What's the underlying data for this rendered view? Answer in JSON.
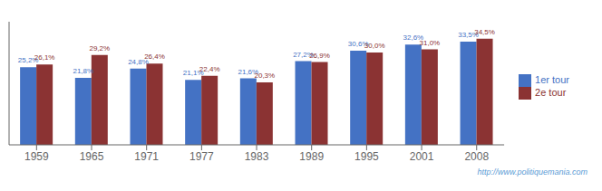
{
  "chart_data": {
    "type": "bar",
    "categories": [
      "1959",
      "1965",
      "1971",
      "1977",
      "1983",
      "1989",
      "1995",
      "2001",
      "2008"
    ],
    "series": [
      {
        "name": "1er tour",
        "color": "#4472C4",
        "values": [
          25.2,
          21.8,
          24.8,
          21.1,
          21.6,
          27.2,
          30.6,
          32.6,
          33.5
        ],
        "value_labels": [
          "25,2%",
          "21,8%",
          "24,8%",
          "21,1%",
          "21,6%",
          "27,2%",
          "30,6%",
          "32,6%",
          "33,5%"
        ]
      },
      {
        "name": "2e tour",
        "color": "#8B3333",
        "values": [
          26.1,
          29.2,
          26.4,
          22.4,
          20.3,
          26.9,
          30.0,
          31.0,
          34.5
        ],
        "value_labels": [
          "26,1%",
          "29,2%",
          "26,4%",
          "22,4%",
          "20,3%",
          "26,9%",
          "30,0%",
          "31,0%",
          "34,5%"
        ]
      }
    ],
    "ylim": [
      0,
      40
    ],
    "data_labels": true,
    "tick_labels": "x",
    "grid": false,
    "legend": "right",
    "annotations": [
      "http://www.politiquemania.com"
    ]
  }
}
